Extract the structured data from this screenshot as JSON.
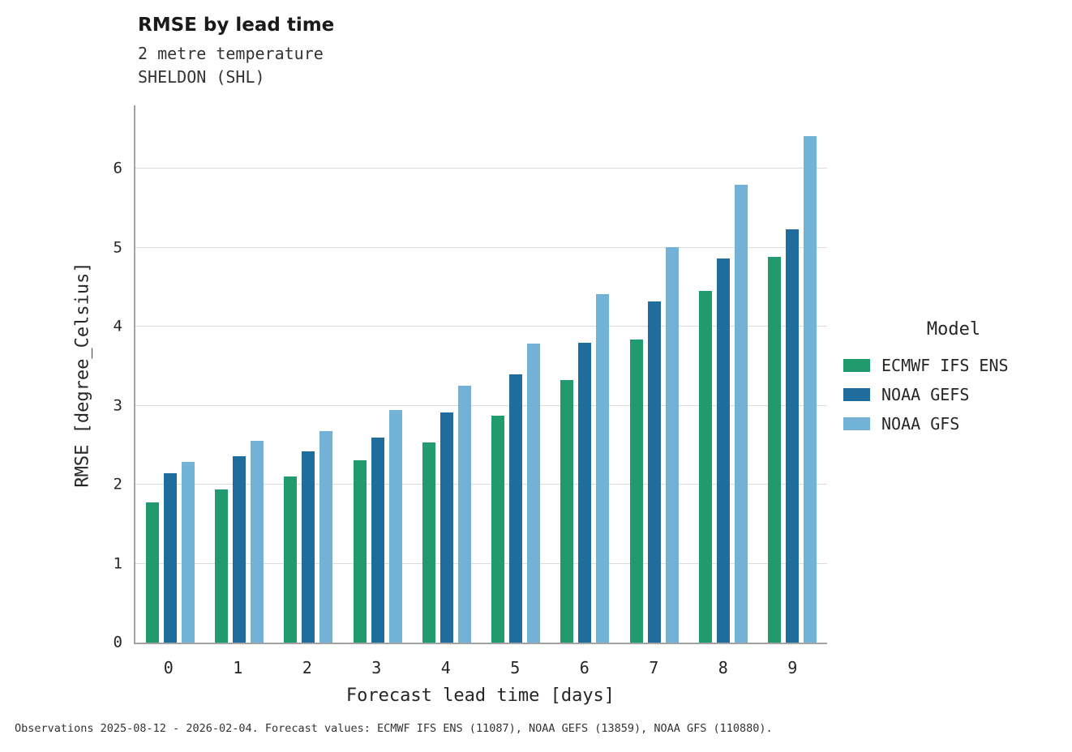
{
  "header": {
    "title": "RMSE by lead time",
    "subtitle_variable": "2 metre temperature",
    "subtitle_station": "SHELDON (SHL)"
  },
  "chart_data": {
    "type": "bar",
    "title": "RMSE by lead time",
    "subtitle": [
      "2 metre temperature",
      "SHELDON (SHL)"
    ],
    "xlabel": "Forecast lead time [days]",
    "ylabel": "RMSE [degree_Celsius]",
    "categories": [
      "0",
      "1",
      "2",
      "3",
      "4",
      "5",
      "6",
      "7",
      "8",
      "9"
    ],
    "ylim": [
      0,
      6.8
    ],
    "yticks": [
      0,
      1,
      2,
      3,
      4,
      5,
      6
    ],
    "grid": "horizontal",
    "legend_title": "Model",
    "legend_position": "right",
    "series": [
      {
        "name": "ECMWF IFS ENS",
        "color": "#219a6e",
        "values": [
          1.77,
          1.94,
          2.1,
          2.31,
          2.53,
          2.87,
          3.32,
          3.84,
          4.45,
          4.88
        ]
      },
      {
        "name": "NOAA GEFS",
        "color": "#1f6d9c",
        "values": [
          2.14,
          2.36,
          2.42,
          2.6,
          2.91,
          3.4,
          3.8,
          4.32,
          4.86,
          5.23
        ]
      },
      {
        "name": "NOAA GFS",
        "color": "#72b2d7",
        "values": [
          2.29,
          2.55,
          2.68,
          2.94,
          3.25,
          3.78,
          4.41,
          5.01,
          5.79,
          6.41
        ]
      }
    ]
  },
  "footer": {
    "note": "Observations 2025-08-12 - 2026-02-04. Forecast values: ECMWF IFS ENS (11087), NOAA GEFS (13859), NOAA GFS (110880)."
  }
}
